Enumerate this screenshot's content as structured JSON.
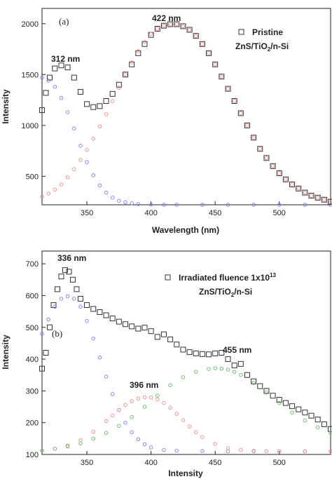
{
  "chart_data": [
    {
      "type": "scatter",
      "panel_label": "(a)",
      "xlabel": "Wavelength (nm)",
      "ylabel": "Intensity",
      "xlim": [
        315,
        540
      ],
      "ylim": [
        220,
        2150
      ],
      "xticks": [
        350,
        400,
        450,
        500
      ],
      "yticks": [
        500,
        1000,
        1500,
        2000
      ],
      "legend": {
        "placement": "top-right",
        "line1": "Pristine",
        "line2_parts": [
          "ZnS/TiO",
          "2",
          "/n-Si"
        ]
      },
      "annotations": [
        {
          "text": "312 nm",
          "x": 327,
          "y": 1650
        },
        {
          "text": "422 nm",
          "x": 420,
          "y": 2050
        }
      ],
      "colors": {
        "measured": "#333333",
        "fit_uv": "#7b7bf0",
        "fit_visible": "#ee8a8a"
      },
      "series": [
        {
          "role": "measured",
          "marker": "square",
          "x": [
            315,
            318,
            321,
            325,
            330,
            335,
            340,
            345,
            350,
            355,
            360,
            365,
            370,
            375,
            380,
            385,
            390,
            395,
            400,
            405,
            410,
            415,
            420,
            425,
            430,
            435,
            440,
            445,
            450,
            455,
            460,
            465,
            470,
            475,
            480,
            485,
            490,
            495,
            500,
            505,
            510,
            515,
            520,
            525,
            530,
            535,
            540
          ],
          "y": [
            1150,
            1320,
            1470,
            1560,
            1590,
            1570,
            1470,
            1330,
            1210,
            1180,
            1190,
            1240,
            1310,
            1400,
            1500,
            1600,
            1710,
            1800,
            1890,
            1950,
            1980,
            1995,
            1995,
            1975,
            1940,
            1880,
            1800,
            1710,
            1600,
            1480,
            1360,
            1240,
            1120,
            1000,
            880,
            770,
            680,
            600,
            530,
            470,
            420,
            380,
            340,
            310,
            290,
            270,
            250
          ]
        },
        {
          "role": "fit_uv",
          "marker": "circle",
          "x": [
            315,
            320,
            325,
            330,
            335,
            340,
            345,
            350,
            355,
            360,
            365,
            370,
            375,
            380,
            385,
            390,
            400,
            410,
            420,
            440,
            460,
            480,
            500,
            520,
            540
          ],
          "y": [
            1470,
            1440,
            1380,
            1270,
            1130,
            970,
            800,
            640,
            510,
            410,
            340,
            290,
            260,
            245,
            235,
            228,
            222,
            220,
            220,
            220,
            220,
            220,
            220,
            220,
            220
          ]
        },
        {
          "role": "fit_visible",
          "marker": "circle",
          "x": [
            315,
            320,
            325,
            330,
            335,
            340,
            345,
            350,
            355,
            360,
            365,
            370,
            375,
            380,
            385,
            390,
            395,
            400,
            405,
            410,
            415,
            420,
            425,
            430,
            435,
            440,
            445,
            450,
            455,
            460,
            465,
            470,
            475,
            480,
            485,
            490,
            495,
            500,
            505,
            510,
            515,
            520,
            525,
            530,
            535,
            540
          ],
          "y": [
            300,
            330,
            370,
            420,
            490,
            570,
            660,
            760,
            870,
            990,
            1110,
            1240,
            1370,
            1500,
            1620,
            1730,
            1820,
            1900,
            1950,
            1980,
            1995,
            1995,
            1975,
            1940,
            1880,
            1800,
            1710,
            1600,
            1480,
            1360,
            1240,
            1120,
            1000,
            880,
            770,
            680,
            600,
            530,
            470,
            420,
            380,
            340,
            310,
            290,
            270,
            250
          ]
        }
      ]
    },
    {
      "type": "scatter",
      "panel_label": "(b)",
      "xlabel": "Intensity",
      "ylabel": "Intensity",
      "xlim": [
        315,
        540
      ],
      "ylim": [
        100,
        740
      ],
      "xticks": [
        350,
        400,
        450,
        500
      ],
      "yticks": [
        100,
        200,
        300,
        400,
        500,
        600,
        700
      ],
      "legend": {
        "placement": "top-right",
        "line1_parts": [
          "Irradiated fluence 1x10",
          "13"
        ],
        "line2_parts": [
          "ZnS/TiO",
          "2",
          "/n-Si"
        ]
      },
      "annotations": [
        {
          "text": "336 nm",
          "x": 334,
          "y": 700
        },
        {
          "text": "396 nm",
          "x": 398,
          "y": 320
        },
        {
          "text": "455 nm",
          "x": 458,
          "y": 445
        }
      ],
      "colors": {
        "measured": "#333333",
        "fit_uv": "#7b7bf0",
        "fit_mid": "#ee8a8a",
        "fit_green": "#66b866"
      },
      "series": [
        {
          "role": "measured",
          "marker": "square",
          "x": [
            315,
            318,
            321,
            324,
            327,
            330,
            333,
            336,
            339,
            342,
            345,
            350,
            355,
            360,
            365,
            370,
            375,
            380,
            385,
            390,
            395,
            400,
            405,
            410,
            415,
            420,
            425,
            430,
            435,
            440,
            445,
            450,
            455,
            460,
            465,
            470,
            475,
            480,
            485,
            490,
            495,
            500,
            505,
            510,
            515,
            520,
            525,
            530,
            535,
            540
          ],
          "y": [
            370,
            420,
            500,
            570,
            620,
            660,
            680,
            675,
            650,
            620,
            590,
            570,
            558,
            548,
            538,
            528,
            518,
            510,
            503,
            496,
            499,
            488,
            470,
            478,
            462,
            446,
            430,
            422,
            418,
            416,
            415,
            418,
            420,
            400,
            380,
            385,
            350,
            330,
            315,
            300,
            285,
            272,
            262,
            252,
            242,
            232,
            222,
            210,
            195,
            180
          ]
        },
        {
          "role": "fit_uv",
          "marker": "circle",
          "x": [
            315,
            320,
            325,
            330,
            335,
            340,
            345,
            350,
            355,
            360,
            365,
            370,
            375,
            380,
            385,
            390,
            395,
            400,
            410,
            420,
            440,
            460,
            480,
            500,
            520,
            540
          ],
          "y": [
            480,
            525,
            565,
            590,
            598,
            590,
            565,
            520,
            465,
            405,
            345,
            290,
            240,
            200,
            170,
            148,
            132,
            122,
            114,
            112,
            111,
            110,
            110,
            110,
            110,
            110
          ]
        },
        {
          "role": "fit_mid",
          "marker": "circle",
          "x": [
            315,
            325,
            335,
            345,
            355,
            365,
            370,
            375,
            380,
            385,
            390,
            395,
            400,
            405,
            410,
            415,
            420,
            425,
            430,
            435,
            440,
            450,
            460,
            470,
            480,
            490,
            500,
            520,
            540
          ],
          "y": [
            112,
            118,
            128,
            145,
            172,
            205,
            223,
            240,
            256,
            268,
            276,
            280,
            279,
            273,
            262,
            247,
            228,
            208,
            188,
            170,
            155,
            133,
            120,
            114,
            111,
            110,
            110,
            110,
            110
          ]
        },
        {
          "role": "fit_green",
          "marker": "circle",
          "x": [
            315,
            325,
            335,
            345,
            355,
            365,
            375,
            385,
            395,
            405,
            415,
            425,
            435,
            445,
            450,
            455,
            460,
            465,
            470,
            480,
            490,
            500,
            510,
            520,
            530,
            540
          ],
          "y": [
            112,
            118,
            125,
            135,
            150,
            168,
            190,
            218,
            250,
            285,
            318,
            343,
            360,
            369,
            371,
            370,
            367,
            360,
            350,
            325,
            295,
            262,
            232,
            207,
            185,
            168
          ]
        }
      ]
    }
  ]
}
